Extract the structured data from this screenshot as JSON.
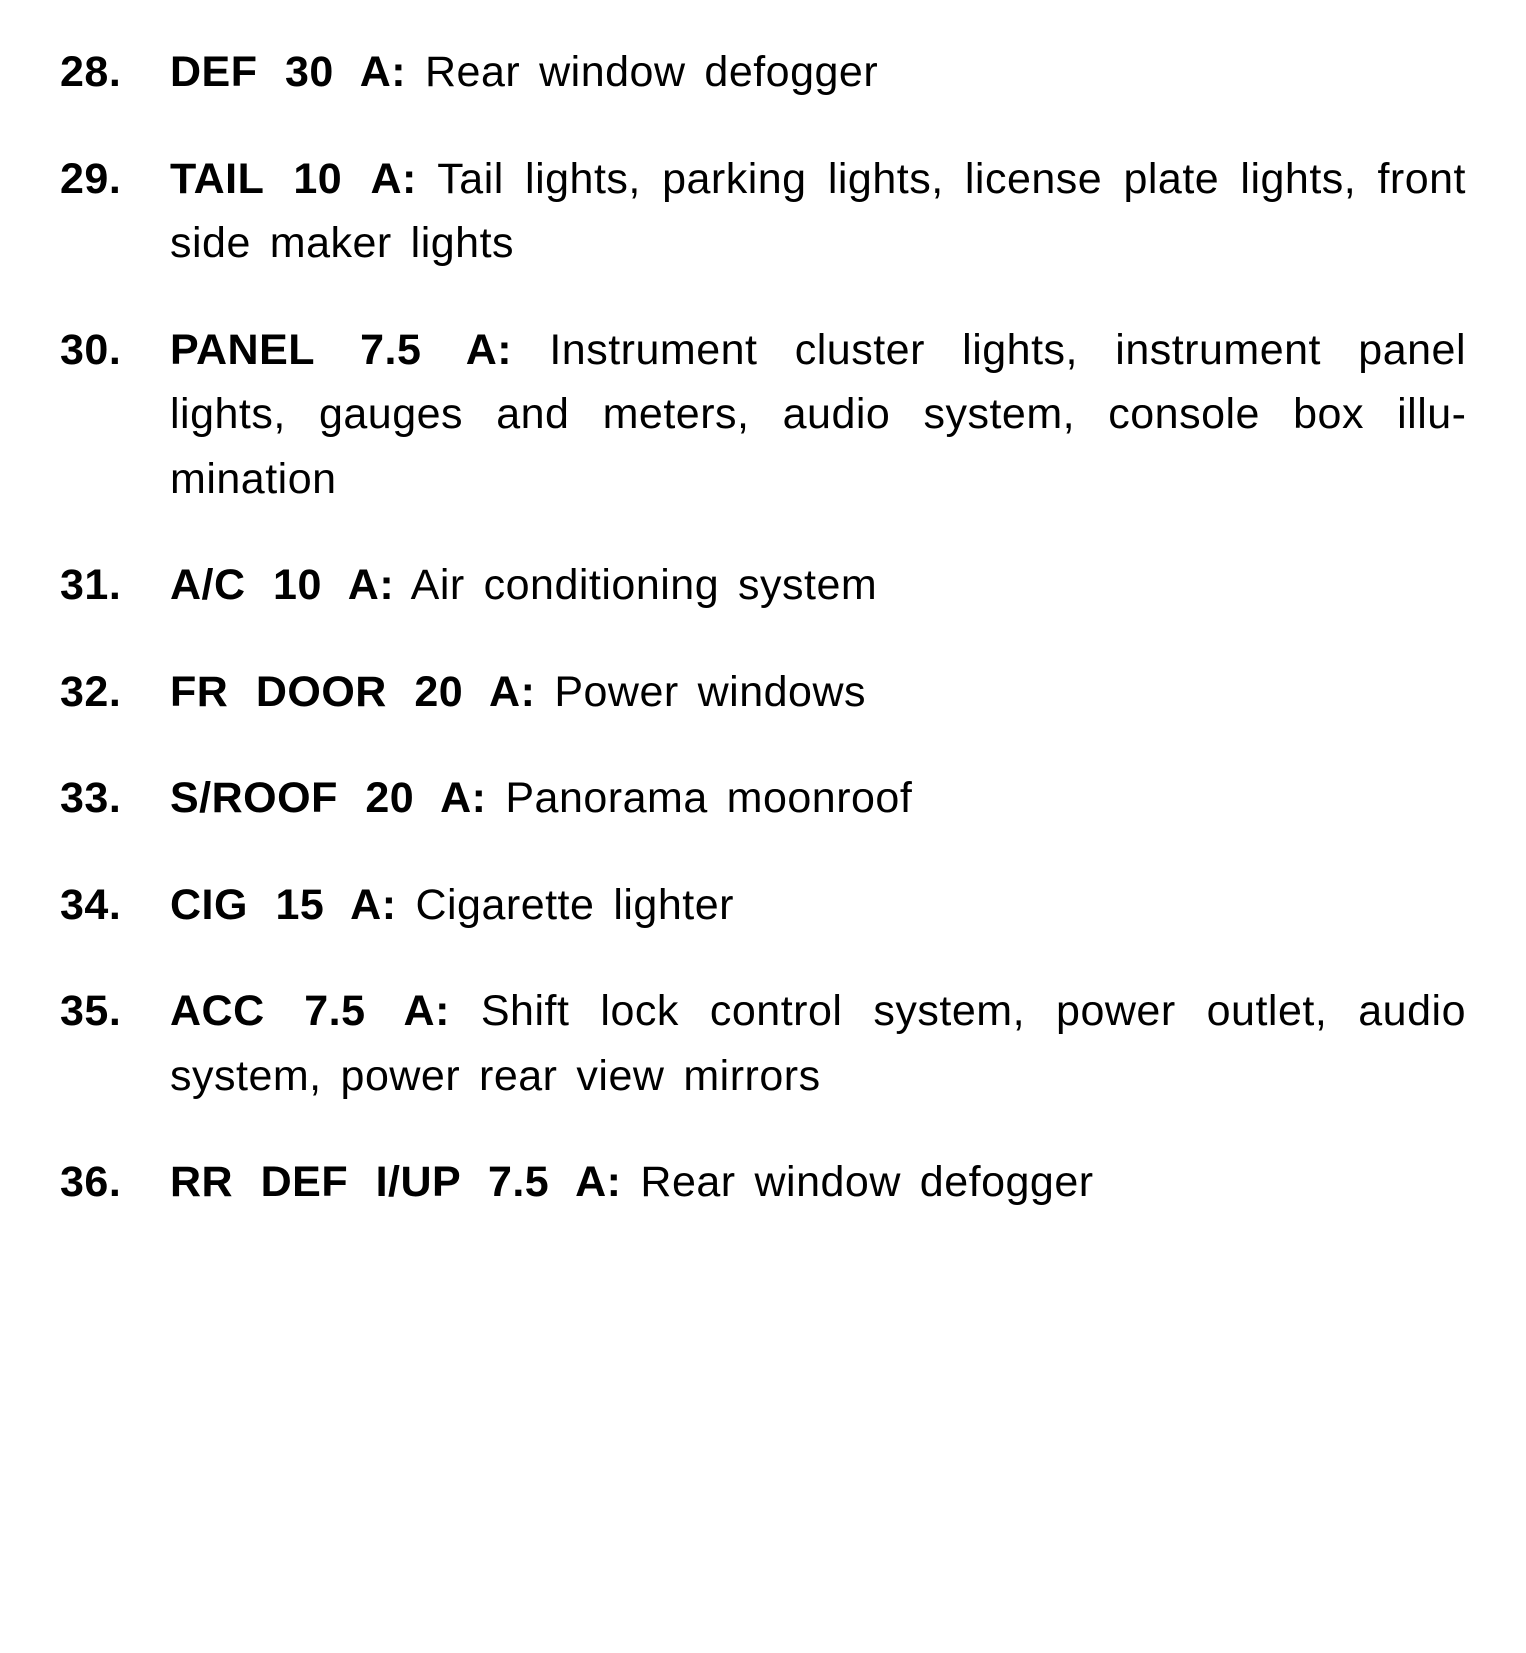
{
  "document": {
    "font_family": "Helvetica, Arial, sans-serif",
    "background_color": "#ffffff",
    "text_color": "#000000",
    "item_fontsize": 43,
    "line_height": 1.5,
    "item_gap": 42,
    "number_weight": 700,
    "label_weight": 700,
    "description_weight": 400
  },
  "fuse_entries": [
    {
      "number": "28.",
      "label": "DEF 30 A:",
      "description": " Rear window defogger"
    },
    {
      "number": "29.",
      "label": "TAIL 10 A:",
      "description": " Tail lights, parking lights, license plate lights, front side maker lights"
    },
    {
      "number": "30.",
      "label": "PANEL 7.5 A:",
      "description": " Instrument cluster lights, instrument panel lights, gauges and meters, audio system, console box illu­mination"
    },
    {
      "number": "31.",
      "label": "A/C 10 A:",
      "description": " Air conditioning system"
    },
    {
      "number": "32.",
      "label": "FR DOOR 20 A:",
      "description": " Power windows"
    },
    {
      "number": "33.",
      "label": "S/ROOF 20 A:",
      "description": " Panorama moonroof"
    },
    {
      "number": "34.",
      "label": "CIG 15 A:",
      "description": " Cigarette lighter"
    },
    {
      "number": "35.",
      "label": "ACC 7.5 A:",
      "description": " Shift lock control system, power outlet, audio system, power rear view mirrors"
    },
    {
      "number": "36.",
      "label": "RR DEF I/UP 7.5 A:",
      "description": " Rear window de­fogger"
    }
  ]
}
